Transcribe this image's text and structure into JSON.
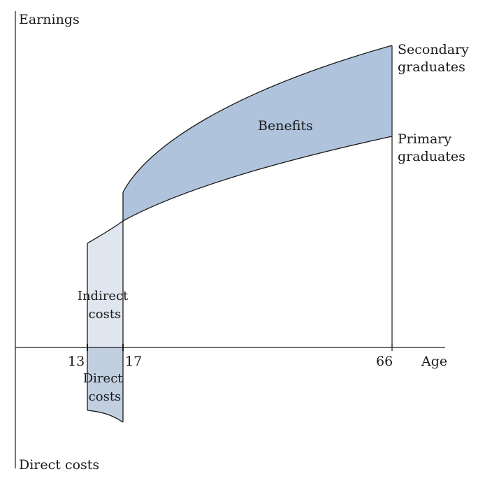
{
  "axes": {
    "y_top_label": "Earnings",
    "y_bottom_label": "Direct costs",
    "x_label": "Age"
  },
  "ticks": {
    "t13": "13",
    "t17": "17",
    "t66": "66"
  },
  "curves": {
    "secondary": [
      "Secondary",
      "graduates"
    ],
    "primary": [
      "Primary",
      "graduates"
    ]
  },
  "regions": {
    "benefits": "Benefits",
    "indirect": [
      "Indirect",
      "costs"
    ],
    "direct": [
      "Direct",
      "costs"
    ]
  },
  "colors": {
    "benefits_fill": "#afc4dc",
    "indirect_fill": "#e0e6ef",
    "direct_fill": "#c1cfe1",
    "line": "#1a1a1a"
  }
}
